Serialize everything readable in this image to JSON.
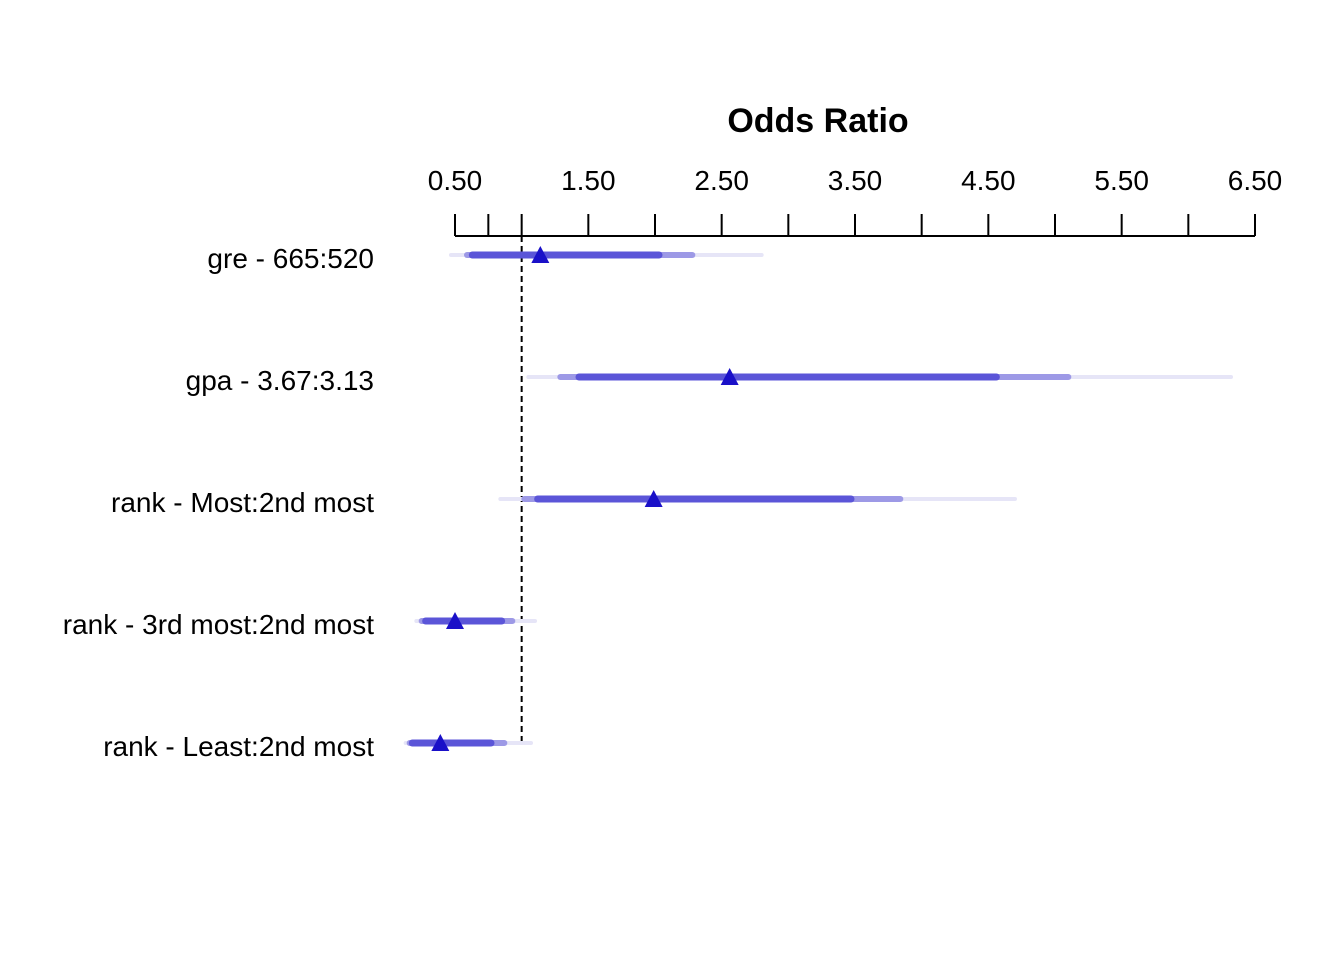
{
  "chart_data": {
    "type": "forest",
    "title": "",
    "xlabel": "Odds Ratio",
    "ylabel": "",
    "xlim": [
      0.5,
      6.5
    ],
    "x_ticks": [
      0.5,
      1.5,
      2.5,
      3.5,
      4.5,
      5.5,
      6.5
    ],
    "x_tick_labels": [
      "0.50",
      "1.50",
      "2.50",
      "3.50",
      "4.50",
      "5.50",
      "6.50"
    ],
    "x_minor_ticks": [
      0.75,
      1.0,
      2.0,
      3.0,
      4.0,
      5.0,
      6.0
    ],
    "reference_line": 1.0,
    "grid": false,
    "colors": {
      "point": "#1a10c8",
      "ci_inner": "#5b55d8",
      "ci_middle": "#9d99e6",
      "ci_outer": "#e6e5f7",
      "reference": "#000000"
    },
    "rows": [
      {
        "label": "gre - 665:520",
        "estimate": 1.14,
        "ci_inner": [
          0.63,
          2.03
        ],
        "ci_middle": [
          0.59,
          2.28
        ],
        "ci_outer": [
          0.47,
          2.8
        ]
      },
      {
        "label": "gpa - 3.67:3.13",
        "estimate": 2.56,
        "ci_inner": [
          1.43,
          4.56
        ],
        "ci_middle": [
          1.29,
          5.1
        ],
        "ci_outer": [
          1.05,
          6.32
        ]
      },
      {
        "label": "rank - Most:2nd most",
        "estimate": 1.99,
        "ci_inner": [
          1.12,
          3.47
        ],
        "ci_middle": [
          1.02,
          3.84
        ],
        "ci_outer": [
          0.84,
          4.7
        ]
      },
      {
        "label": "rank - 3rd most:2nd most",
        "estimate": 0.5,
        "ci_inner": [
          0.28,
          0.85
        ],
        "ci_middle": [
          0.25,
          0.93
        ],
        "ci_outer": [
          0.21,
          1.1
        ]
      },
      {
        "label": "rank - Least:2nd most",
        "estimate": 0.39,
        "ci_inner": [
          0.18,
          0.77
        ],
        "ci_middle": [
          0.16,
          0.87
        ],
        "ci_outer": [
          0.13,
          1.07
        ]
      }
    ]
  }
}
